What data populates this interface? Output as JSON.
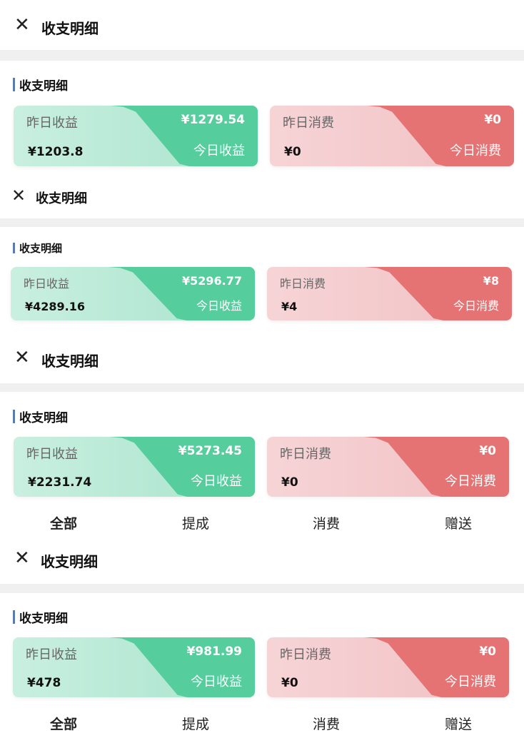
{
  "colors": {
    "income": "#56cd9d",
    "expense": "#e57374",
    "accent_bar": "#5b7bb0"
  },
  "panels": [
    {
      "title": "收支明细",
      "section": "收支明细",
      "income": {
        "yesterday_label": "昨日收益",
        "yesterday_value": "¥1203.8",
        "today_label": "今日收益",
        "today_value": "¥1279.54"
      },
      "expense": {
        "yesterday_label": "昨日消费",
        "yesterday_value": "¥0",
        "today_label": "今日消费",
        "today_value": "¥0"
      }
    },
    {
      "title": "收支明细",
      "section": "收支明细",
      "income": {
        "yesterday_label": "昨日收益",
        "yesterday_value": "¥4289.16",
        "today_label": "今日收益",
        "today_value": "¥5296.77"
      },
      "expense": {
        "yesterday_label": "昨日消费",
        "yesterday_value": "¥4",
        "today_label": "今日消费",
        "today_value": "¥8"
      }
    },
    {
      "title": "收支明细",
      "section": "收支明细",
      "income": {
        "yesterday_label": "昨日收益",
        "yesterday_value": "¥2231.74",
        "today_label": "今日收益",
        "today_value": "¥5273.45"
      },
      "expense": {
        "yesterday_label": "昨日消费",
        "yesterday_value": "¥0",
        "today_label": "今日消费",
        "today_value": "¥0"
      },
      "tabs": [
        "全部",
        "提成",
        "消费",
        "赠送"
      ]
    },
    {
      "title": "收支明细",
      "section": "收支明细",
      "income": {
        "yesterday_label": "昨日收益",
        "yesterday_value": "¥478",
        "today_label": "今日收益",
        "today_value": "¥981.99"
      },
      "expense": {
        "yesterday_label": "昨日消费",
        "yesterday_value": "¥0",
        "today_label": "今日消费",
        "today_value": "¥0"
      },
      "tabs": [
        "全部",
        "提成",
        "消费",
        "赠送"
      ]
    }
  ]
}
